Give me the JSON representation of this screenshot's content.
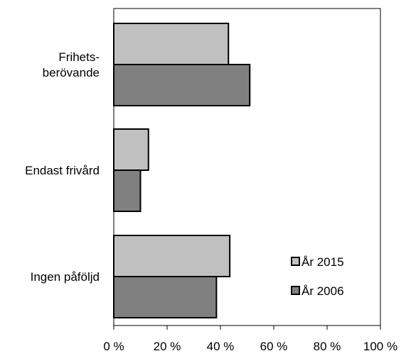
{
  "chart_data": {
    "type": "bar",
    "orientation": "horizontal",
    "categories": [
      "Frihets-\nberövande",
      "Endast frivård",
      "Ingen påföljd"
    ],
    "series": [
      {
        "name": "År 2015",
        "values": [
          43,
          13,
          43.5
        ],
        "color": "#c0c0c0"
      },
      {
        "name": "År 2006",
        "values": [
          51,
          10,
          38.5
        ],
        "color": "#808080"
      }
    ],
    "xlim": [
      0,
      100
    ],
    "xticks": [
      0,
      20,
      40,
      60,
      80,
      100
    ],
    "tick_labels": [
      "0 %",
      "20 %",
      "40 %",
      "60 %",
      "80 %",
      "100 %"
    ],
    "title": "",
    "xlabel": "",
    "ylabel": "",
    "grid": false,
    "legend_position": "bottom-right"
  }
}
